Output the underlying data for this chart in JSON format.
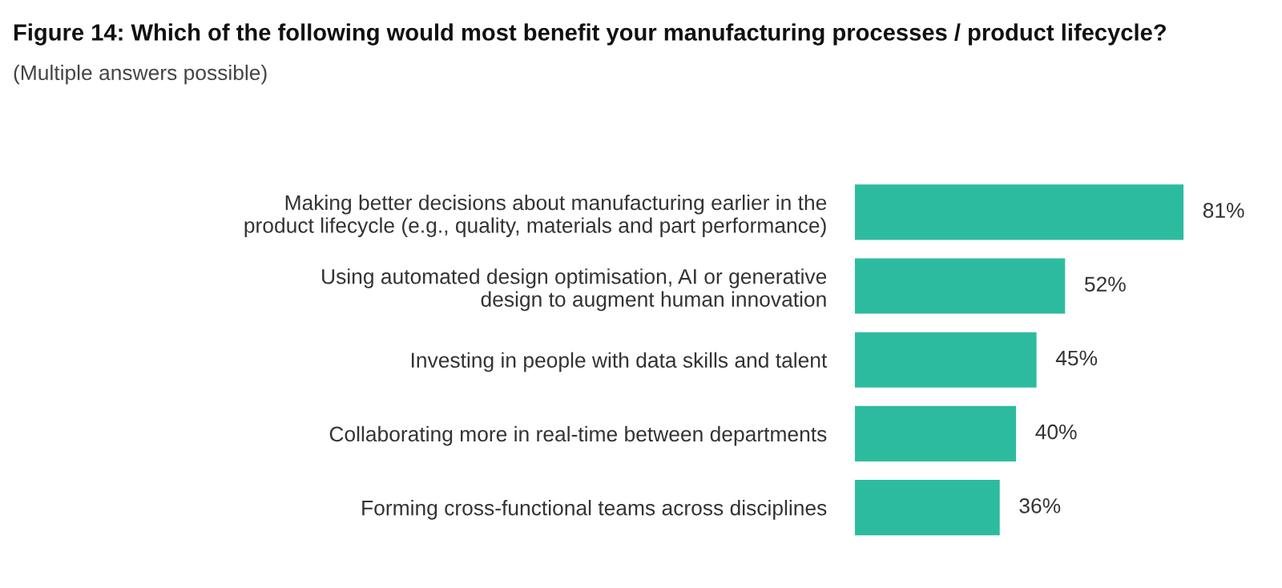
{
  "chart_data": {
    "type": "bar",
    "orientation": "horizontal",
    "title": "Figure 14: Which of the following would most benefit your manufacturing processes / product lifecycle?",
    "subtitle": "(Multiple answers possible)",
    "categories": [
      "Making better decisions about manufacturing earlier in the\nproduct lifecycle (e.g., quality, materials and part performance)",
      "Using automated design optimisation, AI or generative\ndesign to augment human innovation",
      "Investing in people with data skills and talent",
      "Collaborating more in real-time between departments",
      "Forming cross-functional teams across disciplines"
    ],
    "values": [
      81,
      52,
      45,
      40,
      36
    ],
    "value_labels": [
      "81%",
      "52%",
      "45%",
      "40%",
      "36%"
    ],
    "color": "#2dbb9f",
    "tick_labels": "y",
    "grid": false,
    "legend": false
  }
}
